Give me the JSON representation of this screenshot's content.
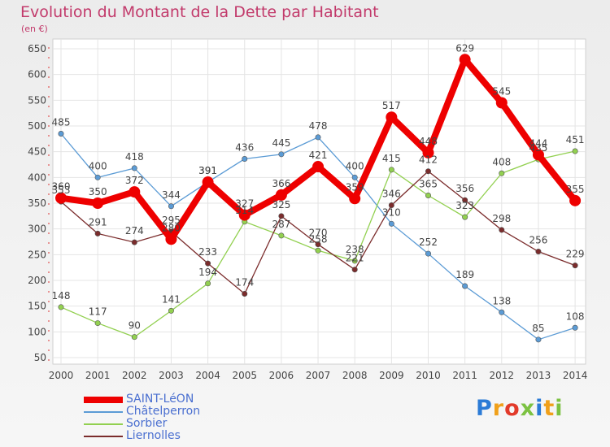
{
  "title": "Evolution du Montant de la Dette par Habitant",
  "unit": "(en €)",
  "brand": "Proxiti",
  "chart_data": {
    "type": "line",
    "title": "Evolution du Montant de la Dette par Habitant",
    "ylabel": "(en €)",
    "xlabel": "",
    "ylim": [
      50,
      650
    ],
    "yticks": [
      50,
      100,
      150,
      200,
      250,
      300,
      350,
      400,
      450,
      500,
      550,
      600,
      650
    ],
    "categories": [
      "2000",
      "2001",
      "2002",
      "2003",
      "2004",
      "2005",
      "2006",
      "2007",
      "2008",
      "2009",
      "2010",
      "2011",
      "2012",
      "2013",
      "2014"
    ],
    "grid": true,
    "legend_position": "bottom-left",
    "series": [
      {
        "name": "SAINT-LéON",
        "color": "#ee0000",
        "values": [
          360,
          350,
          372,
          280,
          391,
          327,
          366,
          421,
          359,
          517,
          448,
          629,
          545,
          444,
          355
        ]
      },
      {
        "name": "Châtelperron",
        "color": "#5b9bd5",
        "values": [
          485,
          400,
          418,
          344,
          391,
          436,
          445,
          478,
          400,
          310,
          252,
          189,
          138,
          85,
          108
        ]
      },
      {
        "name": "Sorbier",
        "color": "#92d050",
        "values": [
          148,
          117,
          90,
          141,
          194,
          314,
          287,
          258,
          238,
          415,
          365,
          323,
          408,
          435,
          451
        ]
      },
      {
        "name": "Liernolles",
        "color": "#7b2c2c",
        "values": [
          353,
          291,
          274,
          295,
          233,
          174,
          325,
          270,
          221,
          346,
          412,
          356,
          298,
          256,
          229
        ]
      }
    ]
  }
}
